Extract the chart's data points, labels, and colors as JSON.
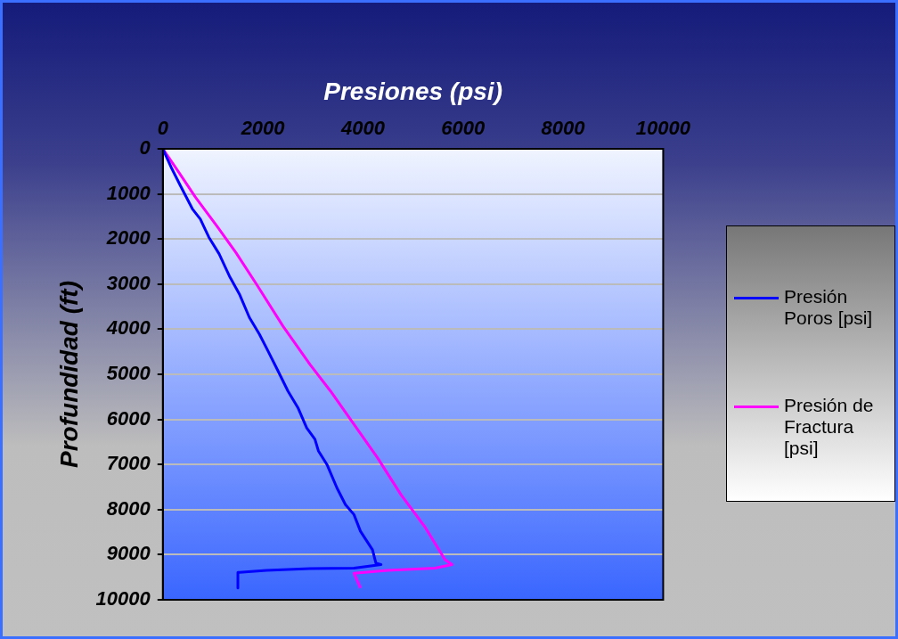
{
  "chart_data": {
    "type": "line",
    "xlabel": "Presiones (psi)",
    "ylabel": "Profundidad (ft)",
    "xlim": [
      0,
      10000
    ],
    "ylim": [
      10000,
      0
    ],
    "xticks": [
      0,
      2000,
      4000,
      6000,
      8000,
      10000
    ],
    "yticks": [
      0,
      1000,
      2000,
      3000,
      4000,
      5000,
      6000,
      7000,
      8000,
      9000,
      10000
    ],
    "grid": "y",
    "legend": "right",
    "marker": "none",
    "series": [
      {
        "name": "Presión Poros [psi]",
        "color": "#0000ff",
        "x": [
          0,
          180,
          350,
          590,
          750,
          920,
          1125,
          1330,
          1530,
          1730,
          1930,
          2100,
          2300,
          2500,
          2700,
          2875,
          3040,
          3110,
          3280,
          3480,
          3650,
          3820,
          3950,
          4190,
          4260,
          4360,
          3820,
          2940,
          2070,
          1530,
          1500,
          1500
        ],
        "values": [
          0,
          440,
          815,
          1330,
          1560,
          1960,
          2330,
          2820,
          3220,
          3740,
          4110,
          4480,
          4920,
          5370,
          5740,
          6190,
          6440,
          6700,
          7000,
          7520,
          7890,
          8110,
          8480,
          8890,
          9190,
          9220,
          9300,
          9310,
          9350,
          9390,
          9390,
          9740
        ]
      },
      {
        "name": "Presión de Fractura [psi]",
        "color": "#ff00ff",
        "x": [
          0,
          320,
          650,
          1125,
          1460,
          1870,
          2400,
          2940,
          3350,
          3820,
          4290,
          4760,
          5230,
          5640,
          5780,
          5440,
          4490,
          3820,
          3950
        ],
        "values": [
          0,
          520,
          1070,
          1780,
          2300,
          3000,
          3930,
          4780,
          5370,
          6110,
          6850,
          7670,
          8370,
          9110,
          9220,
          9300,
          9350,
          9410,
          9740
        ]
      }
    ]
  }
}
